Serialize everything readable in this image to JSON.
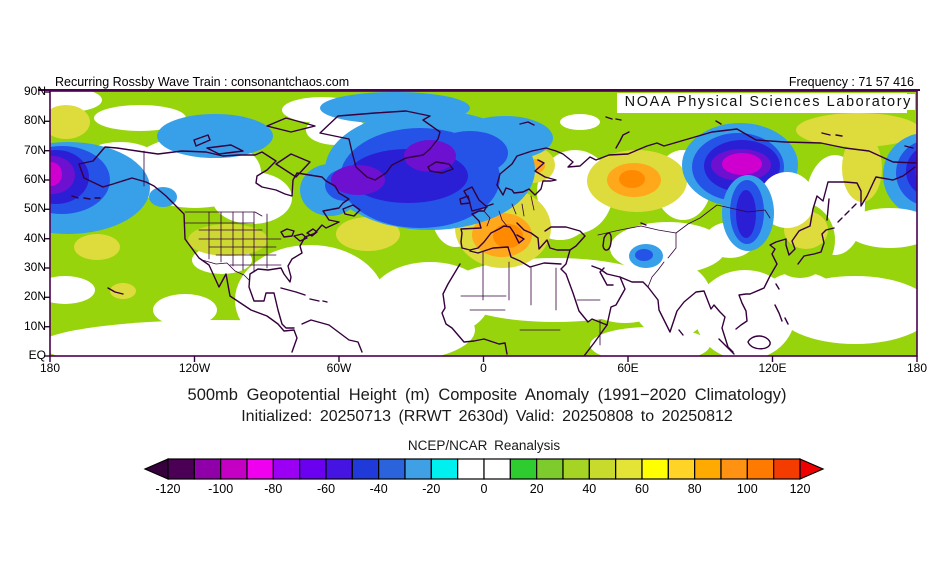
{
  "header": {
    "left": "Recurring Rossby Wave Train : consonantchaos.com",
    "right": "Frequency : 71 57 416",
    "org": "NOAA Physical Sciences Laboratory"
  },
  "title": {
    "line1": "500mb Geopotential Height (m) Composite Anomaly (1991−2020 Climatology)",
    "line2": "Initialized: 20250713 (RRWT 2630d) Valid: 20250808 to 20250812"
  },
  "map": {
    "axes": {
      "lat": [
        "90N",
        "80N",
        "70N",
        "60N",
        "50N",
        "40N",
        "30N",
        "20N",
        "10N",
        "EQ"
      ],
      "lon": [
        "180",
        "120W",
        "60W",
        "0",
        "60E",
        "120E",
        "180"
      ]
    }
  },
  "colorbar": {
    "caption": "NCEP/NCAR Reanalysis",
    "ticks": [
      "-120",
      "-100",
      "-80",
      "-60",
      "-40",
      "-20",
      "0",
      "20",
      "40",
      "60",
      "80",
      "100",
      "120"
    ],
    "cell_colors": [
      "#4b0055",
      "#8f00a8",
      "#c400c4",
      "#ef00ef",
      "#9b00f5",
      "#6a00ef",
      "#4513e2",
      "#1f3ad8",
      "#2a63dc",
      "#3fa0e6",
      "#00efef",
      "#ffffff",
      "#ffffff",
      "#2fcc2f",
      "#7ecb2d",
      "#a6d424",
      "#c8da2c",
      "#e4e436",
      "#ffff00",
      "#ffd426",
      "#ffaa00",
      "#ff9212",
      "#ff7a00",
      "#f43b00"
    ],
    "arrow_left_color": "#36003d",
    "arrow_right_color": "#ee0000"
  },
  "palette": {
    "map_green": "#97d40c",
    "map_yellow": "#dedc3c",
    "map_orange": "#ffa81c",
    "map_deep_orange": "#ff8a00",
    "map_light_blue": "#38a0e8",
    "map_blue": "#2553e8",
    "map_dark_blue": "#2b1fd6",
    "map_violet": "#6e10cf",
    "map_magenta": "#cf00cf",
    "coastline": "#35003d",
    "frame": "#4b0050"
  },
  "chart_data": {
    "type": "heatmap",
    "subtype": "filled-contour composite anomaly map, cylindrical equidistant projection",
    "title": "500mb Geopotential Height (m) Composite Anomaly (1991−2020 Climatology)",
    "subtitle": "Initialized: 20250713 (RRWT 2630d) Valid: 20250808 to 20250812",
    "source": "NCEP/NCAR Reanalysis",
    "units": "m",
    "x_axis": {
      "ticks": [
        "180",
        "120W",
        "60W",
        "0",
        "60E",
        "120E",
        "180"
      ],
      "range": "180W to 180E"
    },
    "y_axis": {
      "ticks": [
        "90N",
        "80N",
        "70N",
        "60N",
        "50N",
        "40N",
        "30N",
        "20N",
        "10N",
        "EQ"
      ],
      "range": "EQ to 90N"
    },
    "colorbar_range": [
      -120,
      120
    ],
    "colorbar_interval": 10,
    "colorbar_labeled_every": 20,
    "anomaly_centers": [
      {
        "region": "Gulf of Alaska / dateline (left map edge)",
        "lon": "178W",
        "lat": "60N",
        "value_m": -100
      },
      {
        "region": "Canadian Arctic Archipelago",
        "lon": "105W",
        "lat": "75N",
        "value_m": -30
      },
      {
        "region": "Davis Strait / SW Greenland",
        "lon": "52W",
        "lat": "60N",
        "value_m": -80
      },
      {
        "region": "East Greenland / Iceland",
        "lon": "22W",
        "lat": "67N",
        "value_m": -80
      },
      {
        "region": "North Atlantic",
        "lon": "45W",
        "lat": "43N",
        "value_m": 50
      },
      {
        "region": "Central Europe / Alps",
        "lon": "10E",
        "lat": "45N",
        "value_m": 90
      },
      {
        "region": "Urals / W Kazakhstan",
        "lon": "62E",
        "lat": "58N",
        "value_m": 90
      },
      {
        "region": "Central Siberia",
        "lon": "105E",
        "lat": "65N",
        "value_m": -100
      },
      {
        "region": "NE Siberia / dateline (right map edge)",
        "lon": "178E",
        "lat": "62N",
        "value_m": -100
      },
      {
        "region": "Sea of Japan",
        "lon": "135E",
        "lat": "40N",
        "value_m": 40
      },
      {
        "region": "Pamir / Tibetan Plateau",
        "lon": "70E",
        "lat": "33N",
        "value_m": -30
      },
      {
        "region": "East Siberian Arctic",
        "lon": "155E",
        "lat": "78N",
        "value_m": 40
      },
      {
        "region": "Subtropics broad background band",
        "lon": "various",
        "lat": "EQ-40N",
        "value_m": 15
      }
    ]
  }
}
